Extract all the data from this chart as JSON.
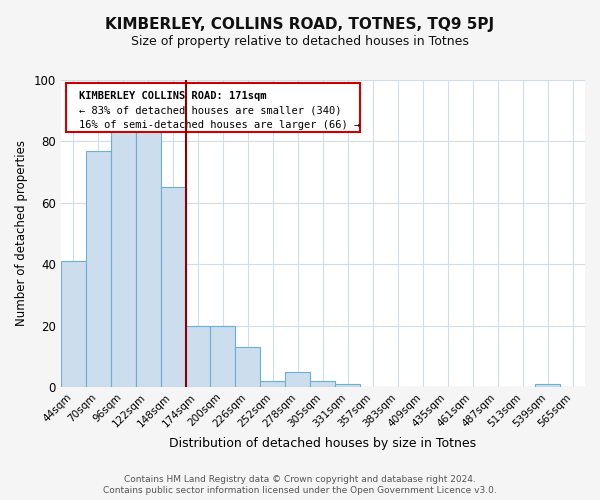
{
  "title": "KIMBERLEY, COLLINS ROAD, TOTNES, TQ9 5PJ",
  "subtitle": "Size of property relative to detached houses in Totnes",
  "xlabel": "Distribution of detached houses by size in Totnes",
  "ylabel": "Number of detached properties",
  "bar_labels": [
    "44sqm",
    "70sqm",
    "96sqm",
    "122sqm",
    "148sqm",
    "174sqm",
    "200sqm",
    "226sqm",
    "252sqm",
    "278sqm",
    "305sqm",
    "331sqm",
    "357sqm",
    "383sqm",
    "409sqm",
    "435sqm",
    "461sqm",
    "487sqm",
    "513sqm",
    "539sqm",
    "565sqm"
  ],
  "bar_values": [
    41,
    77,
    84,
    84,
    65,
    20,
    20,
    13,
    2,
    5,
    2,
    1,
    0,
    0,
    0,
    0,
    0,
    0,
    0,
    1,
    0
  ],
  "bar_color": "#ccdded",
  "bar_edge_color": "#6baed6",
  "vline_color": "#8b0000",
  "ylim": [
    0,
    100
  ],
  "annotation_title": "KIMBERLEY COLLINS ROAD: 171sqm",
  "annotation_line1": "← 83% of detached houses are smaller (340)",
  "annotation_line2": "16% of semi-detached houses are larger (66) →",
  "annotation_box_color": "#ffffff",
  "annotation_box_edge": "#cc0000",
  "footer_line1": "Contains HM Land Registry data © Crown copyright and database right 2024.",
  "footer_line2": "Contains public sector information licensed under the Open Government Licence v3.0.",
  "background_color": "#f5f5f5",
  "plot_background": "#ffffff",
  "grid_color": "#d0dde8"
}
